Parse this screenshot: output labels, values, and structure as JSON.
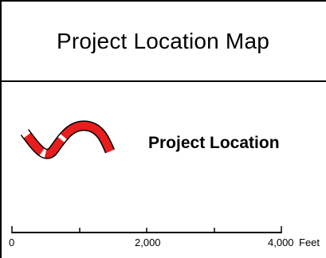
{
  "map": {
    "title": "Project Location Map",
    "legend": {
      "label": "Project Location",
      "symbol_color": "#e81d1d",
      "symbol_icon": "project-route-symbol"
    },
    "scale_bar": {
      "ticks": [
        "0",
        "2,000",
        "4,000"
      ],
      "unit": "Feet"
    }
  }
}
